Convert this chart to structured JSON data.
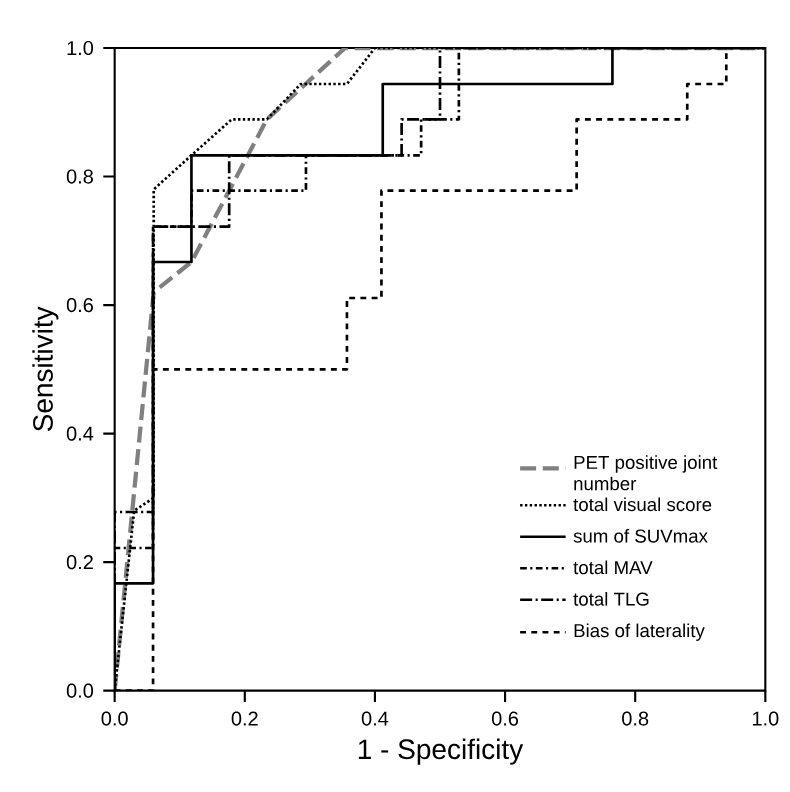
{
  "chart_data": {
    "type": "line",
    "xlabel": "1 - Specificity",
    "ylabel": "Sensitivity",
    "xlim": [
      0,
      1
    ],
    "ylim": [
      0,
      1
    ],
    "xticks": [
      {
        "value": 0,
        "label": "0.0"
      },
      0.2,
      0.4,
      0.6,
      0.8,
      {
        "value": 1,
        "label": "1.0"
      }
    ],
    "yticks": [
      {
        "value": 0,
        "label": "0.0"
      },
      0.2,
      0.4,
      0.6,
      0.8,
      {
        "value": 1,
        "label": "1.0"
      }
    ],
    "legend": "bottom right",
    "series": [
      {
        "name": "PET positive joint number",
        "color": "#808080",
        "line_style": "longdashed",
        "x": [
          0,
          0.06,
          0.118,
          0.234,
          0.354,
          1
        ],
        "values": [
          0,
          0.62,
          0.667,
          0.889,
          1,
          1
        ]
      },
      {
        "name": "total visual score",
        "color": "#000000",
        "line_style": "dotted",
        "x": [
          0,
          0.03,
          0.06,
          0.06,
          0.118,
          0.18,
          0.234,
          0.286,
          0.357,
          0.4,
          1
        ],
        "values": [
          0,
          0.28,
          0.3,
          0.78,
          0.833,
          0.889,
          0.889,
          0.944,
          0.944,
          1,
          1
        ]
      },
      {
        "name": "sum of SUVmax",
        "color": "#000000",
        "line_style": "solid",
        "x": [
          0,
          0,
          0.059,
          0.059,
          0.118,
          0.118,
          0.412,
          0.412,
          0.765,
          0.765,
          1
        ],
        "values": [
          0,
          0.167,
          0.167,
          0.667,
          0.667,
          0.833,
          0.833,
          0.944,
          0.944,
          1,
          1
        ]
      },
      {
        "name": "total MAV",
        "color": "#000000",
        "line_style": "dashdotted",
        "x": [
          0,
          0,
          0.059,
          0.059,
          0.118,
          0.118,
          0.294,
          0.294,
          0.471,
          0.471,
          0.529,
          0.529,
          1
        ],
        "values": [
          0,
          0.222,
          0.222,
          0.722,
          0.722,
          0.778,
          0.778,
          0.833,
          0.833,
          0.889,
          0.889,
          1,
          1
        ]
      },
      {
        "name": "total TLG",
        "color": "#000000",
        "line_style": "longdashdotted",
        "x": [
          0,
          0,
          0.059,
          0.059,
          0.176,
          0.176,
          0.441,
          0.441,
          0.5,
          0.5,
          1
        ],
        "values": [
          0,
          0.278,
          0.278,
          0.722,
          0.722,
          0.833,
          0.833,
          0.889,
          0.889,
          1,
          1
        ]
      },
      {
        "name": "Bias of laterality",
        "color": "#000000",
        "line_style": "dashed",
        "x": [
          0,
          0.059,
          0.059,
          0.357,
          0.357,
          0.41,
          0.41,
          0.71,
          0.71,
          0.88,
          0.88,
          0.94,
          0.94
        ],
        "values": [
          0,
          0,
          0.5,
          0.5,
          0.611,
          0.611,
          0.778,
          0.778,
          0.889,
          0.889,
          0.944,
          0.944,
          1
        ]
      }
    ]
  }
}
